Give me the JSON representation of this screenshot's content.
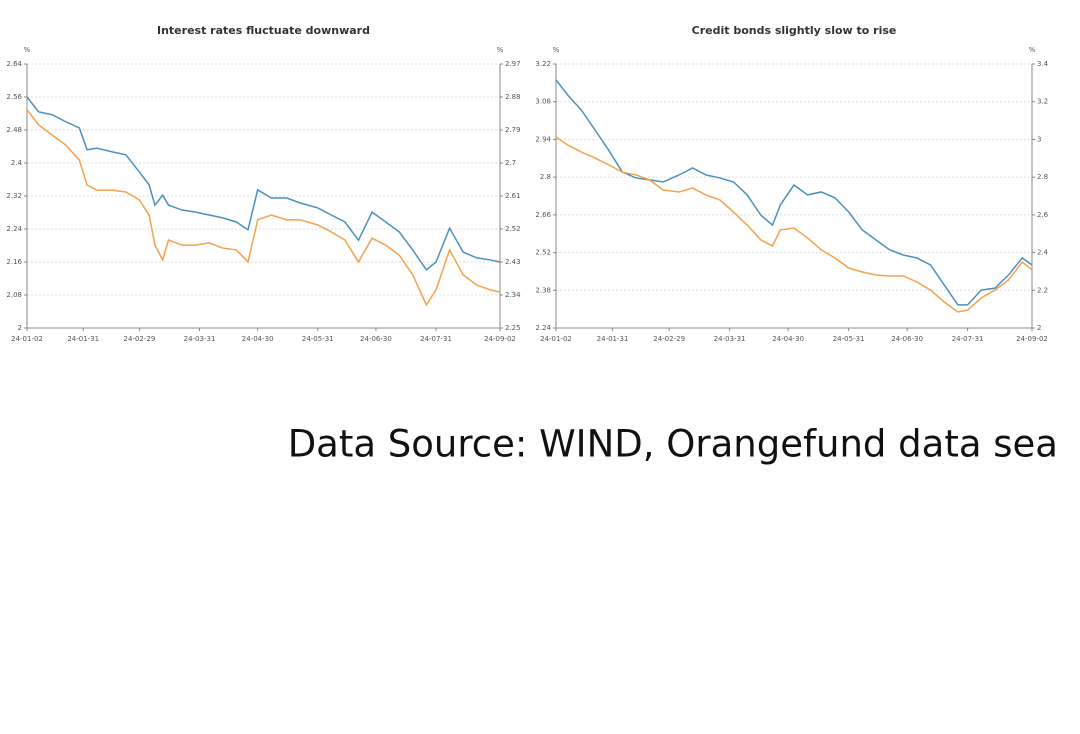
{
  "chart_data": [
    {
      "type": "line",
      "title": "Interest rates fluctuate downward",
      "ylabel": "%",
      "y2label": "%",
      "x": [
        "24-01-02",
        "24-01-08",
        "24-01-15",
        "24-01-22",
        "24-01-29",
        "24-02-02",
        "24-02-07",
        "24-02-15",
        "24-02-22",
        "24-02-29",
        "24-03-05",
        "24-03-08",
        "24-03-12",
        "24-03-15",
        "24-03-22",
        "24-03-29",
        "24-04-05",
        "24-04-12",
        "24-04-19",
        "24-04-25",
        "24-04-30",
        "24-05-07",
        "24-05-15",
        "24-05-22",
        "24-05-31",
        "24-06-07",
        "24-06-14",
        "24-06-21",
        "24-06-28",
        "24-07-05",
        "24-07-12",
        "24-07-19",
        "24-07-26",
        "24-07-31",
        "24-08-07",
        "24-08-14",
        "24-08-21",
        "24-08-28",
        "24-09-02"
      ],
      "series": [
        {
          "color": "#4a90c0",
          "axis": "y",
          "values": [
            2.56,
            2.524,
            2.517,
            2.5,
            2.485,
            2.432,
            2.436,
            2.427,
            2.42,
            2.378,
            2.347,
            2.298,
            2.322,
            2.298,
            2.286,
            2.281,
            2.274,
            2.267,
            2.257,
            2.238,
            2.335,
            2.315,
            2.315,
            2.303,
            2.291,
            2.274,
            2.257,
            2.213,
            2.281,
            2.257,
            2.233,
            2.189,
            2.141,
            2.16,
            2.242,
            2.184,
            2.17,
            2.165,
            2.16
          ]
        },
        {
          "color": "#f5a04a",
          "axis": "y2",
          "values": [
            2.845,
            2.804,
            2.776,
            2.749,
            2.708,
            2.64,
            2.626,
            2.626,
            2.621,
            2.599,
            2.558,
            2.476,
            2.436,
            2.49,
            2.476,
            2.476,
            2.482,
            2.468,
            2.463,
            2.43,
            2.545,
            2.558,
            2.545,
            2.545,
            2.531,
            2.512,
            2.49,
            2.43,
            2.495,
            2.476,
            2.449,
            2.395,
            2.313,
            2.354,
            2.463,
            2.395,
            2.367,
            2.354,
            2.348
          ]
        }
      ],
      "xlim": [
        "24-01-02",
        "24-09-02"
      ],
      "xticks": [
        "24-01-02",
        "24-01-31",
        "24-02-29",
        "24-03-31",
        "24-04-30",
        "24-05-31",
        "24-06-30",
        "24-07-31",
        "24-09-02"
      ],
      "ylim": [
        2,
        2.64
      ],
      "yticks": [
        2,
        2.08,
        2.16,
        2.24,
        2.32,
        2.4,
        2.48,
        2.56,
        2.64
      ],
      "y2lim": [
        2.25,
        2.97
      ],
      "y2ticks": [
        2.25,
        2.34,
        2.43,
        2.52,
        2.61,
        2.7,
        2.79,
        2.88,
        2.97
      ],
      "grid": true
    },
    {
      "type": "line",
      "title": "Credit bonds slightly slow to rise",
      "ylabel": "%",
      "y2label": "%",
      "x": [
        "24-01-02",
        "24-01-08",
        "24-01-15",
        "24-01-22",
        "24-01-29",
        "24-02-05",
        "24-02-12",
        "24-02-19",
        "24-02-26",
        "24-03-05",
        "24-03-12",
        "24-03-19",
        "24-03-26",
        "24-04-02",
        "24-04-09",
        "24-04-16",
        "24-04-22",
        "24-04-26",
        "24-05-03",
        "24-05-10",
        "24-05-17",
        "24-05-24",
        "24-05-31",
        "24-06-07",
        "24-06-14",
        "24-06-21",
        "24-06-28",
        "24-07-05",
        "24-07-12",
        "24-07-19",
        "24-07-26",
        "24-07-31",
        "24-08-07",
        "24-08-14",
        "24-08-21",
        "24-08-28",
        "24-09-02"
      ],
      "series": [
        {
          "color": "#4a90c0",
          "axis": "y",
          "values": [
            3.161,
            3.105,
            3.049,
            2.975,
            2.9,
            2.819,
            2.797,
            2.79,
            2.782,
            2.808,
            2.834,
            2.808,
            2.797,
            2.782,
            2.734,
            2.659,
            2.622,
            2.697,
            2.771,
            2.734,
            2.745,
            2.723,
            2.671,
            2.604,
            2.567,
            2.53,
            2.511,
            2.5,
            2.474,
            2.4,
            2.326,
            2.326,
            2.381,
            2.388,
            2.437,
            2.5,
            2.474
          ]
        },
        {
          "color": "#f5a04a",
          "axis": "y2",
          "values": [
            3.013,
            2.97,
            2.933,
            2.902,
            2.865,
            2.827,
            2.812,
            2.785,
            2.732,
            2.721,
            2.742,
            2.705,
            2.679,
            2.615,
            2.546,
            2.467,
            2.435,
            2.52,
            2.53,
            2.477,
            2.414,
            2.371,
            2.318,
            2.297,
            2.281,
            2.276,
            2.276,
            2.244,
            2.201,
            2.138,
            2.085,
            2.095,
            2.159,
            2.201,
            2.255,
            2.35,
            2.308
          ]
        }
      ],
      "xlim": [
        "24-01-02",
        "24-09-02"
      ],
      "xticks": [
        "24-01-02",
        "24-01-31",
        "24-02-29",
        "24-03-31",
        "24-04-30",
        "24-05-31",
        "24-06-30",
        "24-07-31",
        "24-09-02"
      ],
      "ylim": [
        2.24,
        3.22
      ],
      "yticks": [
        2.24,
        2.38,
        2.52,
        2.66,
        2.8,
        2.94,
        3.08,
        3.22
      ],
      "y2lim": [
        2,
        3.4
      ],
      "y2ticks": [
        2,
        2.2,
        2.4,
        2.6,
        2.8,
        3,
        3.2,
        3.4
      ],
      "grid": true
    }
  ],
  "source": "Data Source: WIND, Orangefund data sea"
}
